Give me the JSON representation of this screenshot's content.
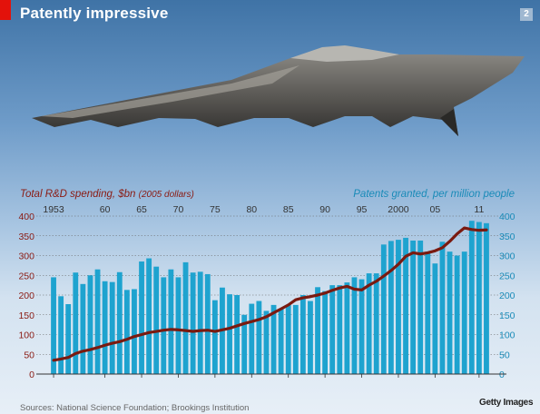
{
  "header": {
    "title": "Patently impressive",
    "page_number": "2"
  },
  "photo": {
    "subject": "stealth-bomber-aircraft",
    "credit": "Getty Images"
  },
  "source": "Sources: National Science Foundation; Brookings Institution",
  "colors": {
    "accent": "#e3120b",
    "bars": "#1ea3cf",
    "line": "#7a1a10",
    "left_axis": "#8a1a12",
    "right_axis": "#1a8bb8"
  },
  "chart_data": {
    "type": "bar",
    "left_axis_title": "Total R&D spending, $bn",
    "left_axis_unit": "(2005 dollars)",
    "right_axis_title": "Patents granted, per million people",
    "ylim": [
      0,
      400
    ],
    "yticks": [
      0,
      50,
      100,
      150,
      200,
      250,
      300,
      350,
      400
    ],
    "x_tick_labels": [
      {
        "year": 1953,
        "label": "1953"
      },
      {
        "year": 1960,
        "label": "60"
      },
      {
        "year": 1965,
        "label": "65"
      },
      {
        "year": 1970,
        "label": "70"
      },
      {
        "year": 1975,
        "label": "75"
      },
      {
        "year": 1980,
        "label": "80"
      },
      {
        "year": 1985,
        "label": "85"
      },
      {
        "year": 1990,
        "label": "90"
      },
      {
        "year": 1995,
        "label": "95"
      },
      {
        "year": 2000,
        "label": "2000"
      },
      {
        "year": 2005,
        "label": "05"
      },
      {
        "year": 2011,
        "label": "11"
      }
    ],
    "years": [
      1953,
      1954,
      1955,
      1956,
      1957,
      1958,
      1959,
      1960,
      1961,
      1962,
      1963,
      1964,
      1965,
      1966,
      1967,
      1968,
      1969,
      1970,
      1971,
      1972,
      1973,
      1974,
      1975,
      1976,
      1977,
      1978,
      1979,
      1980,
      1981,
      1982,
      1983,
      1984,
      1985,
      1986,
      1987,
      1988,
      1989,
      1990,
      1991,
      1992,
      1993,
      1994,
      1995,
      1996,
      1997,
      1998,
      1999,
      2000,
      2001,
      2002,
      2003,
      2004,
      2005,
      2006,
      2007,
      2008,
      2009,
      2010,
      2011,
      2012
    ],
    "series": [
      {
        "name": "Patents granted, per million people",
        "type": "bar",
        "values": [
          245,
          197,
          177,
          257,
          228,
          250,
          265,
          235,
          233,
          258,
          213,
          215,
          285,
          293,
          272,
          245,
          265,
          245,
          283,
          257,
          259,
          253,
          187,
          219,
          202,
          200,
          150,
          178,
          185,
          160,
          175,
          165,
          175,
          175,
          200,
          185,
          220,
          210,
          225,
          225,
          232,
          245,
          240,
          255,
          255,
          328,
          337,
          340,
          345,
          338,
          338,
          310,
          280,
          335,
          310,
          300,
          310,
          388,
          385,
          382
        ]
      },
      {
        "name": "Total R&D spending, $bn",
        "type": "line",
        "values": [
          35,
          38,
          42,
          52,
          58,
          62,
          67,
          73,
          78,
          82,
          88,
          95,
          100,
          105,
          108,
          111,
          113,
          112,
          110,
          108,
          110,
          111,
          108,
          112,
          116,
          122,
          128,
          133,
          138,
          145,
          155,
          165,
          175,
          188,
          193,
          196,
          200,
          205,
          212,
          218,
          222,
          215,
          213,
          225,
          235,
          248,
          262,
          278,
          298,
          307,
          304,
          307,
          312,
          320,
          336,
          355,
          370,
          366,
          364,
          365
        ]
      }
    ]
  }
}
